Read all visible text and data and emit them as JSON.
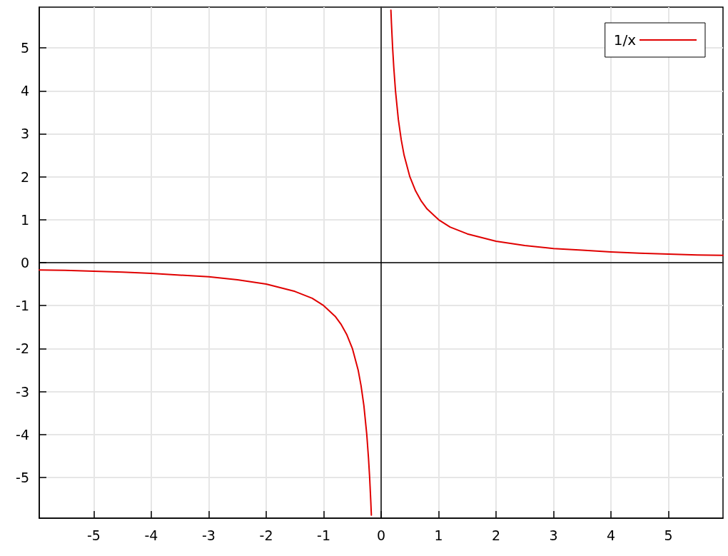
{
  "chart_data": {
    "type": "line",
    "series": [
      {
        "name": "1/x",
        "color": "#e00000",
        "x": [
          -5.95,
          -5.5,
          -5,
          -4.5,
          -4,
          -3.5,
          -3,
          -2.5,
          -2,
          -1.5,
          -1.2,
          -1,
          -0.8,
          -0.7,
          -0.6,
          -0.5,
          -0.4,
          -0.35,
          -0.3,
          -0.25,
          -0.22,
          -0.2,
          -0.18,
          -0.17,
          0,
          0.17,
          0.18,
          0.2,
          0.22,
          0.25,
          0.3,
          0.35,
          0.4,
          0.5,
          0.6,
          0.7,
          0.8,
          1,
          1.2,
          1.5,
          2,
          2.5,
          3,
          3.5,
          4,
          4.5,
          5,
          5.5,
          5.95
        ],
        "values": [
          -0.17,
          -0.18,
          -0.2,
          -0.22,
          -0.25,
          -0.29,
          -0.33,
          -0.4,
          -0.5,
          -0.67,
          -0.83,
          -1,
          -1.25,
          -1.43,
          -1.67,
          -2,
          -2.5,
          -2.86,
          -3.33,
          -4,
          -4.55,
          -5,
          -5.56,
          -5.88,
          null,
          5.88,
          5.56,
          5,
          4.55,
          4,
          3.33,
          2.86,
          2.5,
          2,
          1.67,
          1.43,
          1.25,
          1,
          0.83,
          0.67,
          0.5,
          0.4,
          0.33,
          0.29,
          0.25,
          0.22,
          0.2,
          0.18,
          0.17
        ]
      }
    ],
    "xlim": [
      -5.95,
      5.95
    ],
    "xticks": [
      -5,
      -4,
      -3,
      -2,
      -1,
      0,
      1,
      2,
      3,
      4,
      5
    ],
    "ylim": [
      -5.95,
      5.95
    ],
    "yticks": [
      -5,
      -4,
      -3,
      -2,
      -1,
      0,
      1,
      2,
      3,
      4,
      5
    ],
    "grid": true,
    "legend": "top right",
    "marker": "none",
    "line_style": "solid"
  }
}
